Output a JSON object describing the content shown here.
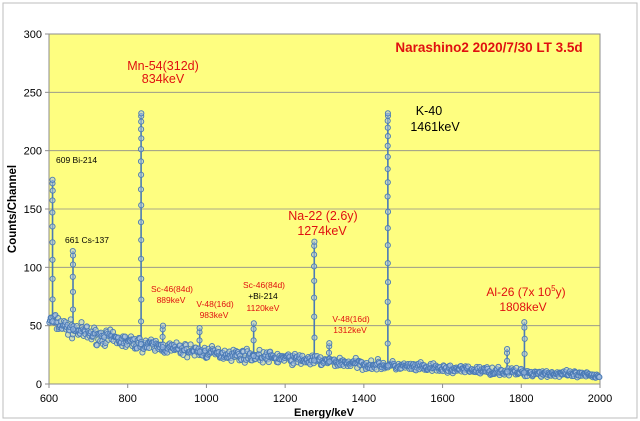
{
  "chart_data": {
    "type": "scatter",
    "title": "Narashino2 2020/7/30 LT 3.5d",
    "xlabel": "Energy/keV",
    "ylabel": "Counts/Channel",
    "xlim": [
      600,
      2000
    ],
    "ylim": [
      0,
      300
    ],
    "x_ticks": [
      "600",
      "800",
      "1000",
      "1200",
      "1400",
      "1600",
      "1800",
      "2000"
    ],
    "y_ticks": [
      "0",
      "50",
      "100",
      "150",
      "200",
      "250",
      "300"
    ],
    "grid": "horizontal",
    "legend": "none",
    "background": {
      "plot": "#fefe80",
      "page": "#ffffff"
    },
    "colors": {
      "series": "#4a7ab5",
      "marker_fill": "#a9c3e3",
      "title": "#e01010",
      "annotation_red": "#e01010",
      "annotation_black": "#000000"
    },
    "peaks": [
      {
        "x": 609,
        "y": 175
      },
      {
        "x": 661,
        "y": 114
      },
      {
        "x": 834,
        "y": 232
      },
      {
        "x": 889,
        "y": 50
      },
      {
        "x": 983,
        "y": 48
      },
      {
        "x": 1120,
        "y": 52
      },
      {
        "x": 1274,
        "y": 122
      },
      {
        "x": 1312,
        "y": 35
      },
      {
        "x": 1461,
        "y": 232
      },
      {
        "x": 1764,
        "y": 30
      },
      {
        "x": 1808,
        "y": 53
      }
    ],
    "baseline": {
      "x": [
        600,
        650,
        700,
        800,
        900,
        1000,
        1200,
        1400,
        1600,
        1800,
        2000
      ],
      "y": [
        55,
        48,
        43,
        36,
        31,
        27,
        22,
        17,
        13,
        10,
        7
      ]
    },
    "annotations": [
      {
        "id": "mn54",
        "lines": [
          "Mn-54(312d)",
          "834keV"
        ],
        "color": "red"
      },
      {
        "id": "k40",
        "lines": [
          "K-40",
          "1461keV"
        ],
        "color": "black"
      },
      {
        "id": "bi214",
        "lines": [
          "609 Bi-214"
        ],
        "color": "black"
      },
      {
        "id": "cs137",
        "lines": [
          "661 Cs-137"
        ],
        "color": "black"
      },
      {
        "id": "na22",
        "lines": [
          "Na-22 (2.6y)",
          "1274keV"
        ],
        "color": "red"
      },
      {
        "id": "sc46a",
        "lines": [
          "Sc-46(84d)",
          "889keV"
        ],
        "color": "red"
      },
      {
        "id": "v48a",
        "lines": [
          "V-48(16d)",
          "983keV"
        ],
        "color": "red"
      },
      {
        "id": "sc46b",
        "lines": [
          "Sc-46(84d)",
          "+Bi-214",
          "1120keV"
        ],
        "color": "mixed"
      },
      {
        "id": "v48b",
        "lines": [
          "V-48(16d)",
          "1312keV"
        ],
        "color": "red"
      },
      {
        "id": "al26",
        "lines": [
          "Al-26 (7x 10",
          "5",
          "y)",
          "1808keV"
        ],
        "color": "red"
      }
    ]
  }
}
